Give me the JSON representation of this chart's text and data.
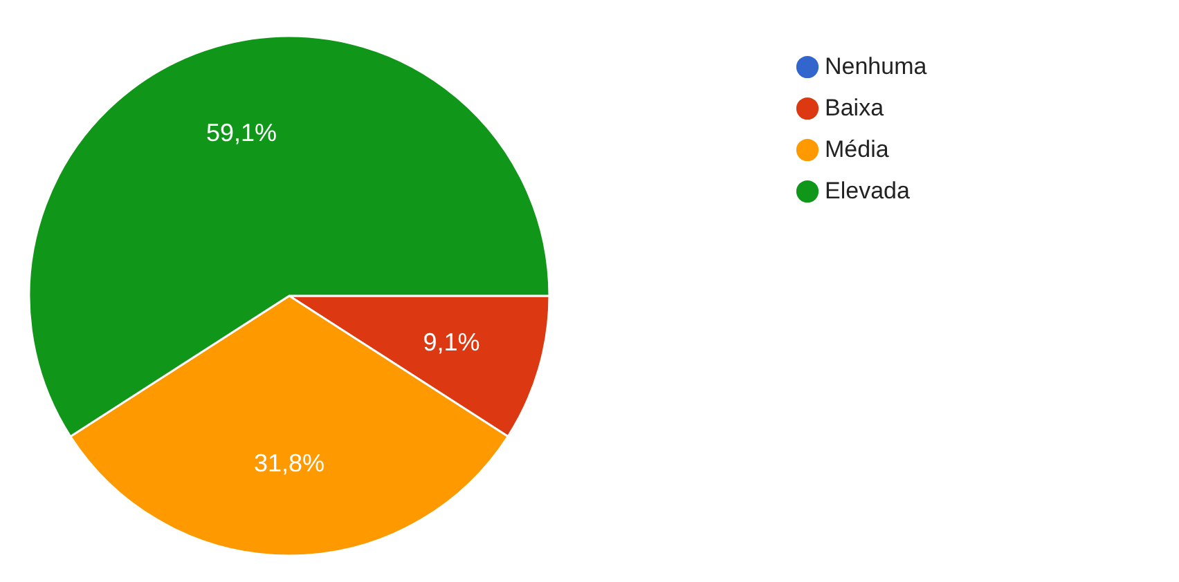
{
  "chart_data": {
    "type": "pie",
    "categories": [
      "Nenhuma",
      "Baixa",
      "Média",
      "Elevada"
    ],
    "values": [
      0,
      9.1,
      31.8,
      59.1
    ],
    "colors": [
      "#3366cc",
      "#dc3912",
      "#ff9900",
      "#109618"
    ],
    "value_labels": [
      null,
      "9,1%",
      "31,8%",
      "59,1%"
    ],
    "legend": "top right"
  }
}
